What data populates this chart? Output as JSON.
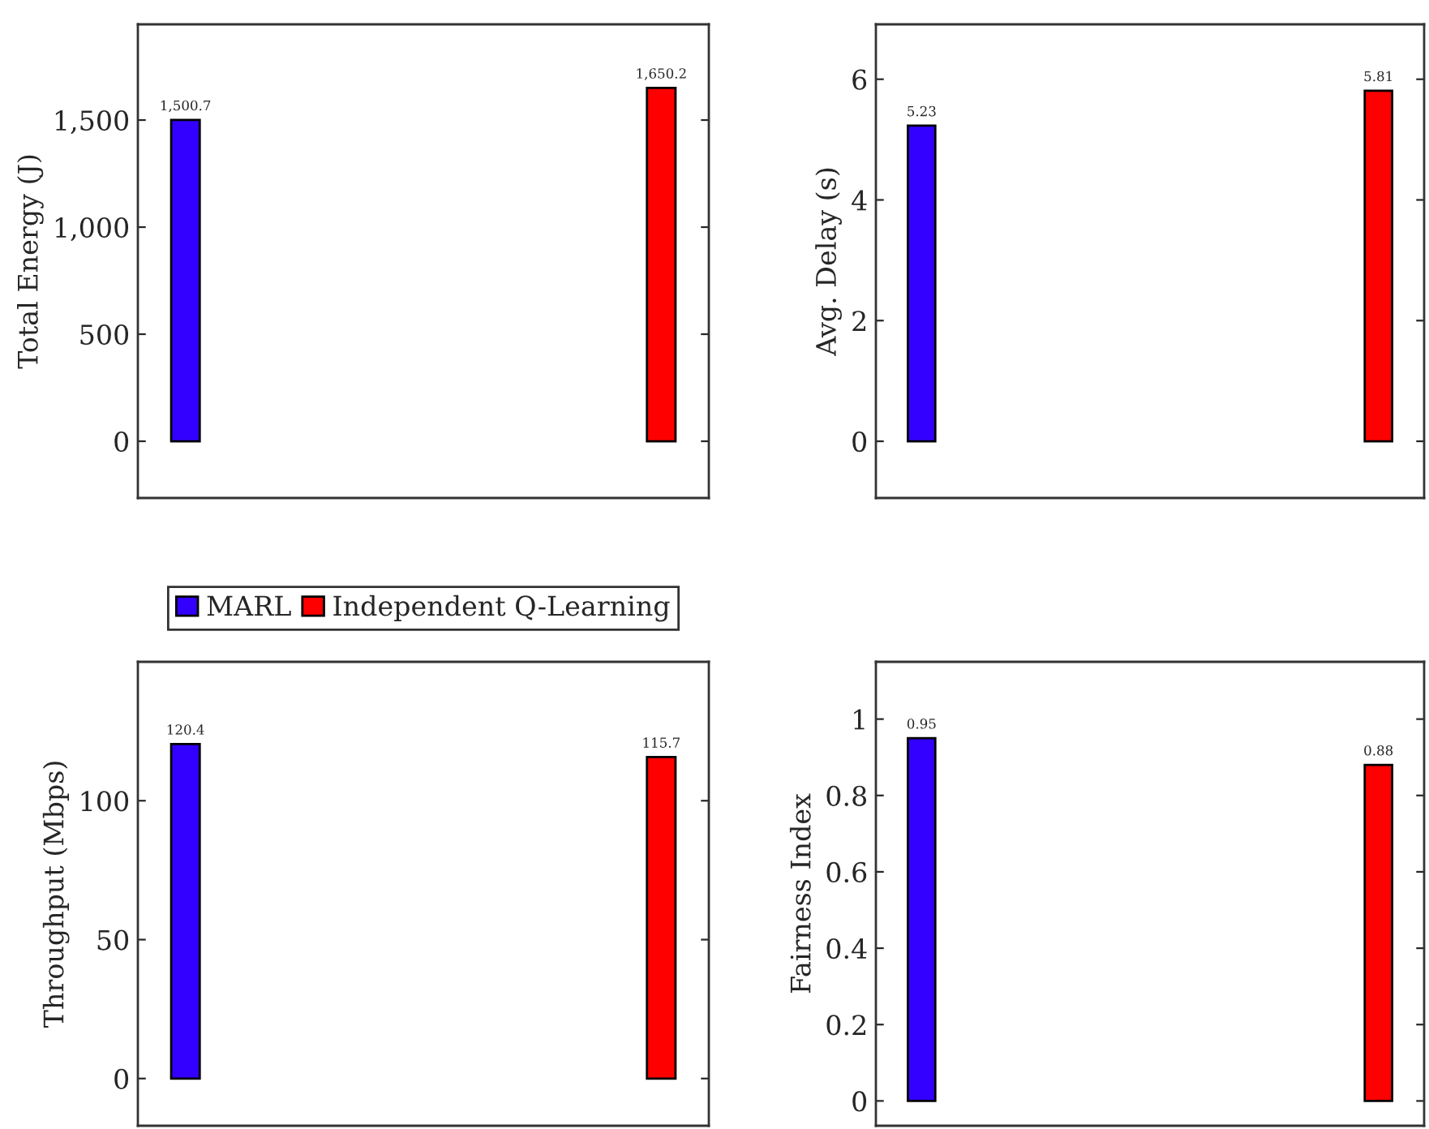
{
  "chart_data": [
    {
      "type": "bar",
      "ylabel": "Total Energy (J)",
      "categories": [
        null,
        null
      ],
      "ylim": [
        -265,
        1947
      ],
      "yticks": [
        0,
        500,
        {
          "value": 1000,
          "label": "1,000"
        },
        {
          "value": 1500,
          "label": "1,500"
        }
      ],
      "grid": false,
      "legend": false,
      "series": [
        {
          "color": "#3300ff",
          "values": [
            1500.7,
            null
          ],
          "value_labels": [
            "1,500.7",
            null
          ]
        },
        {
          "color": "#ff0000",
          "values": [
            null,
            1650.2
          ],
          "value_labels": [
            null,
            "1,650.2"
          ]
        }
      ]
    },
    {
      "type": "bar",
      "ylabel": "Avg. Delay (s)",
      "categories": [
        null,
        null
      ],
      "ylim": [
        -0.94,
        6.91
      ],
      "yticks": [
        0,
        2,
        4,
        6
      ],
      "grid": false,
      "legend": false,
      "series": [
        {
          "color": "#3300ff",
          "values": [
            5.23,
            null
          ],
          "value_labels": [
            "5.23",
            null
          ]
        },
        {
          "color": "#ff0000",
          "values": [
            null,
            5.81
          ],
          "value_labels": [
            null,
            "5.81"
          ]
        }
      ]
    },
    {
      "type": "bar",
      "ylabel": "Throughput (Mbps)",
      "categories": [
        null,
        null
      ],
      "ylim": [
        -17,
        150
      ],
      "yticks": [
        0,
        50,
        100
      ],
      "grid": false,
      "legend": "top",
      "series": [
        {
          "name": "MARL",
          "color": "#3300ff",
          "values": [
            120.4,
            null
          ],
          "value_labels": [
            "120.4",
            null
          ]
        },
        {
          "name": "Independent Q-Learning",
          "color": "#ff0000",
          "values": [
            null,
            115.7
          ],
          "value_labels": [
            null,
            "115.7"
          ]
        }
      ]
    },
    {
      "type": "bar",
      "ylabel": "Fairness Index",
      "categories": [
        null,
        null
      ],
      "ylim": [
        -0.065,
        1.15
      ],
      "yticks": [
        0,
        0.2,
        0.4,
        0.6,
        0.8,
        1
      ],
      "grid": false,
      "legend": false,
      "series": [
        {
          "color": "#3300ff",
          "values": [
            0.95,
            null
          ],
          "value_labels": [
            "0.95",
            null
          ]
        },
        {
          "color": "#ff0000",
          "values": [
            null,
            0.88
          ],
          "value_labels": [
            null,
            "0.88"
          ]
        }
      ]
    }
  ]
}
